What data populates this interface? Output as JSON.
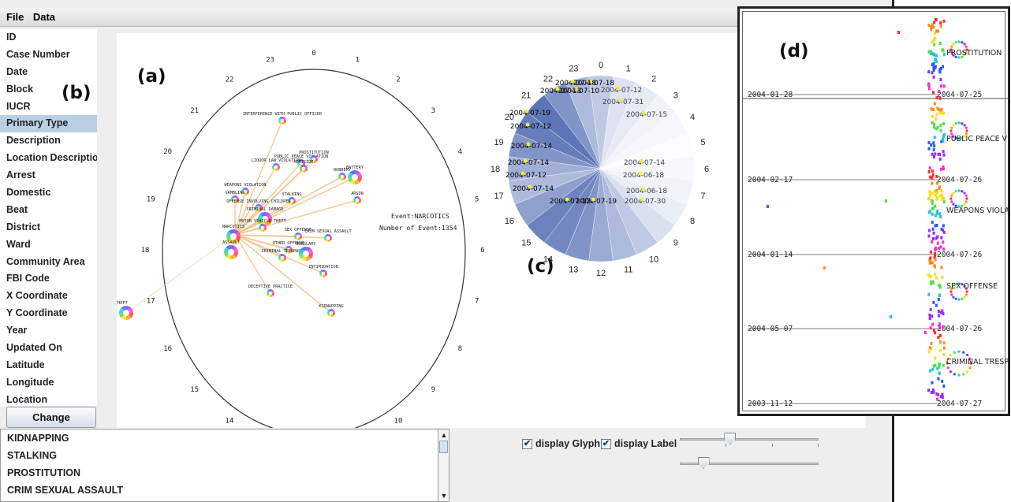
{
  "menu": [
    "File",
    "Data"
  ],
  "attributes": [
    {
      "label": "ID"
    },
    {
      "label": "Case Number"
    },
    {
      "label": "Date"
    },
    {
      "label": "Block"
    },
    {
      "label": "IUCR"
    },
    {
      "label": "Primary Type",
      "selected": true
    },
    {
      "label": "Description"
    },
    {
      "label": "Location Description"
    },
    {
      "label": "Arrest"
    },
    {
      "label": "Domestic"
    },
    {
      "label": "Beat"
    },
    {
      "label": "District"
    },
    {
      "label": "Ward"
    },
    {
      "label": "Community Area"
    },
    {
      "label": "FBI Code"
    },
    {
      "label": "X Coordinate"
    },
    {
      "label": "Y Coordinate"
    },
    {
      "label": "Year"
    },
    {
      "label": "Updated On"
    },
    {
      "label": "Latitude"
    },
    {
      "label": "Longitude"
    },
    {
      "label": "Location"
    }
  ],
  "change_button": "Change",
  "event_list": [
    "KIDNAPPING",
    "STALKING",
    "PROSTITUTION",
    "CRIM SEXUAL ASSAULT"
  ],
  "controls": {
    "display_glyph": "display Glyph",
    "display_label": "display Label",
    "glyph_checked": true,
    "label_checked": true,
    "slider1_value": 0.35,
    "slider2_value": 0.14
  },
  "panel_tags": {
    "a": "(a)",
    "b": "(b)",
    "c": "(c)",
    "d": "(d)"
  },
  "graph": {
    "hours": [
      "0",
      "1",
      "2",
      "3",
      "4",
      "5",
      "6",
      "7",
      "8",
      "9",
      "10",
      "11",
      "12",
      "13",
      "14",
      "15",
      "16",
      "17",
      "18",
      "19",
      "20",
      "21",
      "22",
      "23"
    ],
    "center_node": "NARCOTICS",
    "info_event": "Event:NARCOTICS",
    "info_count": "Number of Event:1354",
    "nodes": [
      {
        "label": "INTERFERENCE WITH PUBLIC OFFICER"
      },
      {
        "label": "LIQUOR LAW VIOLATION"
      },
      {
        "label": "PUBLIC PEACE VIOLATION"
      },
      {
        "label": "PROSTITUTION"
      },
      {
        "label": "HOMICIDE"
      },
      {
        "label": "ROBBERY"
      },
      {
        "label": "BATTERY"
      },
      {
        "label": "ARSON"
      },
      {
        "label": "WEAPONS VIOLATION"
      },
      {
        "label": "GAMBLING"
      },
      {
        "label": "STALKING"
      },
      {
        "label": "OFFENSE INVOLVING CHILDREN"
      },
      {
        "label": "CRIMINAL DAMAGE"
      },
      {
        "label": "MOTOR VEHICLE THEFT"
      },
      {
        "label": "NARCOTICS"
      },
      {
        "label": "ASSAULT"
      },
      {
        "label": "SEX OFFENSE"
      },
      {
        "label": "CRIM SEXUAL ASSAULT"
      },
      {
        "label": "OTHER OFFENSE"
      },
      {
        "label": "CRIMINAL TRESPASS"
      },
      {
        "label": "BURGLARY"
      },
      {
        "label": "INTIMIDATION"
      },
      {
        "label": "DECEPTIVE PRACTICE"
      },
      {
        "label": "KIDNAPPING"
      },
      {
        "label": "THEFT"
      }
    ]
  },
  "clock": {
    "hours": [
      "0",
      "1",
      "2",
      "3",
      "4",
      "5",
      "6",
      "7",
      "8",
      "9",
      "10",
      "11",
      "12",
      "13",
      "14",
      "15",
      "16",
      "17",
      "18",
      "19",
      "20",
      "21",
      "22",
      "23"
    ],
    "sector_intensity": [
      0.35,
      0.18,
      0.14,
      0.08,
      0.05,
      0.02,
      0.05,
      0.08,
      0.12,
      0.2,
      0.35,
      0.45,
      0.55,
      0.7,
      0.78,
      0.82,
      0.62,
      0.45,
      0.52,
      0.7,
      0.85,
      0.9,
      0.7,
      0.45
    ],
    "dates": [
      "2004-07-18",
      "2004-07-12",
      "2004-07-31",
      "2004-07-15",
      "2004-07-14",
      "2004-06-18",
      "2004-06-18",
      "2004-07-30",
      "2004-07-19",
      "2004-07-12",
      "2004-07-14",
      "2004-07-12",
      "2004-07-19",
      "2004-07-14",
      "2004-07-12",
      "2004-07-14",
      "2004-07-18",
      "2004-07-10",
      "2004-07-13"
    ]
  },
  "timelines": {
    "labels": [
      "PROSTITUTION",
      "PUBLIC PEACE VIOLATION",
      "WEAPONS VIOLATION",
      "SEX OFFENSE",
      "CRIMINAL TRESPASS"
    ],
    "start_dates": [
      "2004-01-28",
      "2004-02-17",
      "2004-01-14",
      "2004-05-07",
      "2003-11-12"
    ],
    "end_dates": [
      "2004-07-25",
      "2004-07-26",
      "2004-07-26",
      "2004-07-26",
      "2004-07-27"
    ]
  }
}
